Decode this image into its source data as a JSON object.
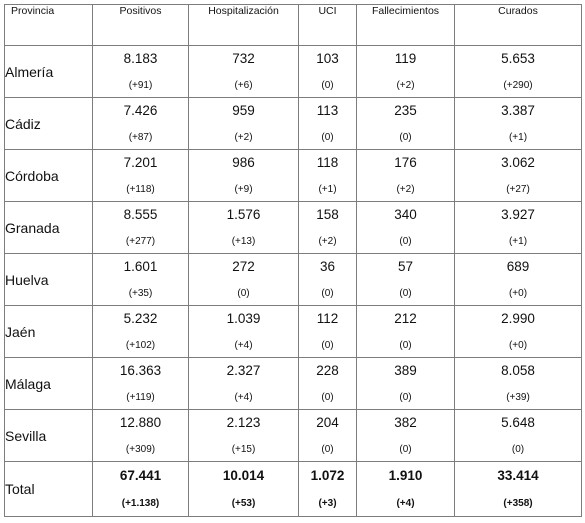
{
  "table": {
    "headers": [
      "Provincia",
      "Positivos",
      "Hospitalización",
      "UCI",
      "Fallecimientos",
      "Curados"
    ],
    "rows": [
      {
        "province": "Almería",
        "cells": [
          [
            "8.183",
            "(+91)"
          ],
          [
            "732",
            "(+6)"
          ],
          [
            "103",
            "(0)"
          ],
          [
            "119",
            "(+2)"
          ],
          [
            "5.653",
            "(+290)"
          ]
        ]
      },
      {
        "province": "Cádiz",
        "cells": [
          [
            "7.426",
            "(+87)"
          ],
          [
            "959",
            "(+2)"
          ],
          [
            "113",
            "(0)"
          ],
          [
            "235",
            "(0)"
          ],
          [
            "3.387",
            "(+1)"
          ]
        ]
      },
      {
        "province": "Córdoba",
        "cells": [
          [
            "7.201",
            "(+118)"
          ],
          [
            "986",
            "(+9)"
          ],
          [
            "118",
            "(+1)"
          ],
          [
            "176",
            "(+2)"
          ],
          [
            "3.062",
            "(+27)"
          ]
        ]
      },
      {
        "province": "Granada",
        "cells": [
          [
            "8.555",
            "(+277)"
          ],
          [
            "1.576",
            "(+13)"
          ],
          [
            "158",
            "(+2)"
          ],
          [
            "340",
            "(0)"
          ],
          [
            "3.927",
            "(+1)"
          ]
        ]
      },
      {
        "province": "Huelva",
        "cells": [
          [
            "1.601",
            "(+35)"
          ],
          [
            "272",
            "(0)"
          ],
          [
            "36",
            "(0)"
          ],
          [
            "57",
            "(0)"
          ],
          [
            "689",
            "(+0)"
          ]
        ]
      },
      {
        "province": "Jaén",
        "cells": [
          [
            "5.232",
            "(+102)"
          ],
          [
            "1.039",
            "(+4)"
          ],
          [
            "112",
            "(0)"
          ],
          [
            "212",
            "(0)"
          ],
          [
            "2.990",
            "(+0)"
          ]
        ]
      },
      {
        "province": "Málaga",
        "cells": [
          [
            "16.363",
            "(+119)"
          ],
          [
            "2.327",
            "(+4)"
          ],
          [
            "228",
            "(0)"
          ],
          [
            "389",
            "(0)"
          ],
          [
            "8.058",
            "(+39)"
          ]
        ]
      },
      {
        "province": "Sevilla",
        "cells": [
          [
            "12.880",
            "(+309)"
          ],
          [
            "2.123",
            "(+15)"
          ],
          [
            "204",
            "(0)"
          ],
          [
            "382",
            "(0)"
          ],
          [
            "5.648",
            "(0)"
          ]
        ]
      }
    ],
    "total": {
      "label": "Total",
      "cells": [
        [
          "67.441",
          "(+1.138)"
        ],
        [
          "10.014",
          "(+53)"
        ],
        [
          "1.072",
          "(+3)"
        ],
        [
          "1.910",
          "(+4)"
        ],
        [
          "33.414",
          "(+358)"
        ]
      ]
    }
  }
}
